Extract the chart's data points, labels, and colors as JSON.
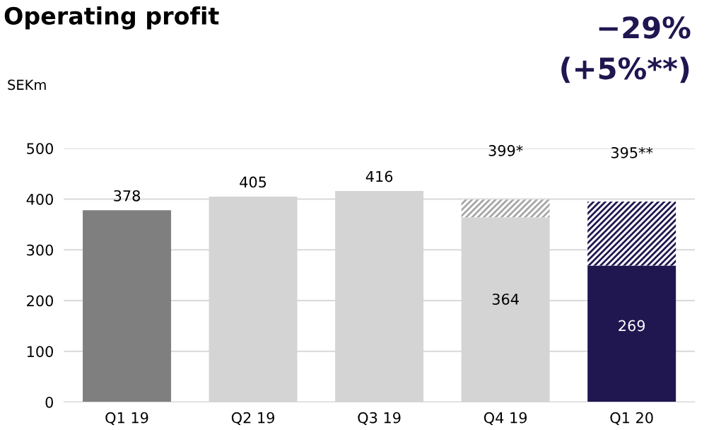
{
  "chart_data": {
    "type": "bar",
    "title": "Operating profit",
    "ylabel": "SEKm",
    "stacked": true,
    "categories": [
      "Q1 19",
      "Q2 19",
      "Q3 19",
      "Q4 19",
      "Q1 20"
    ],
    "series": [
      {
        "colors": [
          "#7f7f7f",
          "#d4d4d4",
          "#d4d4d4",
          "#d4d4d4",
          "#201650"
        ],
        "values": [
          378,
          405,
          416,
          364,
          269
        ],
        "value_labels": [
          null,
          null,
          null,
          "364",
          "269"
        ]
      },
      {
        "colors": [
          "#a6a6a6",
          "#a6a6a6",
          "#a6a6a6",
          "#a6a6a6",
          "#201650"
        ],
        "values": [
          null,
          null,
          null,
          35,
          126
        ]
      }
    ],
    "totals": [
      "378",
      "405",
      "416",
      "399*",
      "395**"
    ],
    "annotations": [
      "−29%",
      "(+5%**)"
    ],
    "ylim": [
      0,
      500
    ],
    "yticks": [
      0,
      100,
      200,
      300,
      400,
      500
    ],
    "grid": "y",
    "legend": false
  }
}
